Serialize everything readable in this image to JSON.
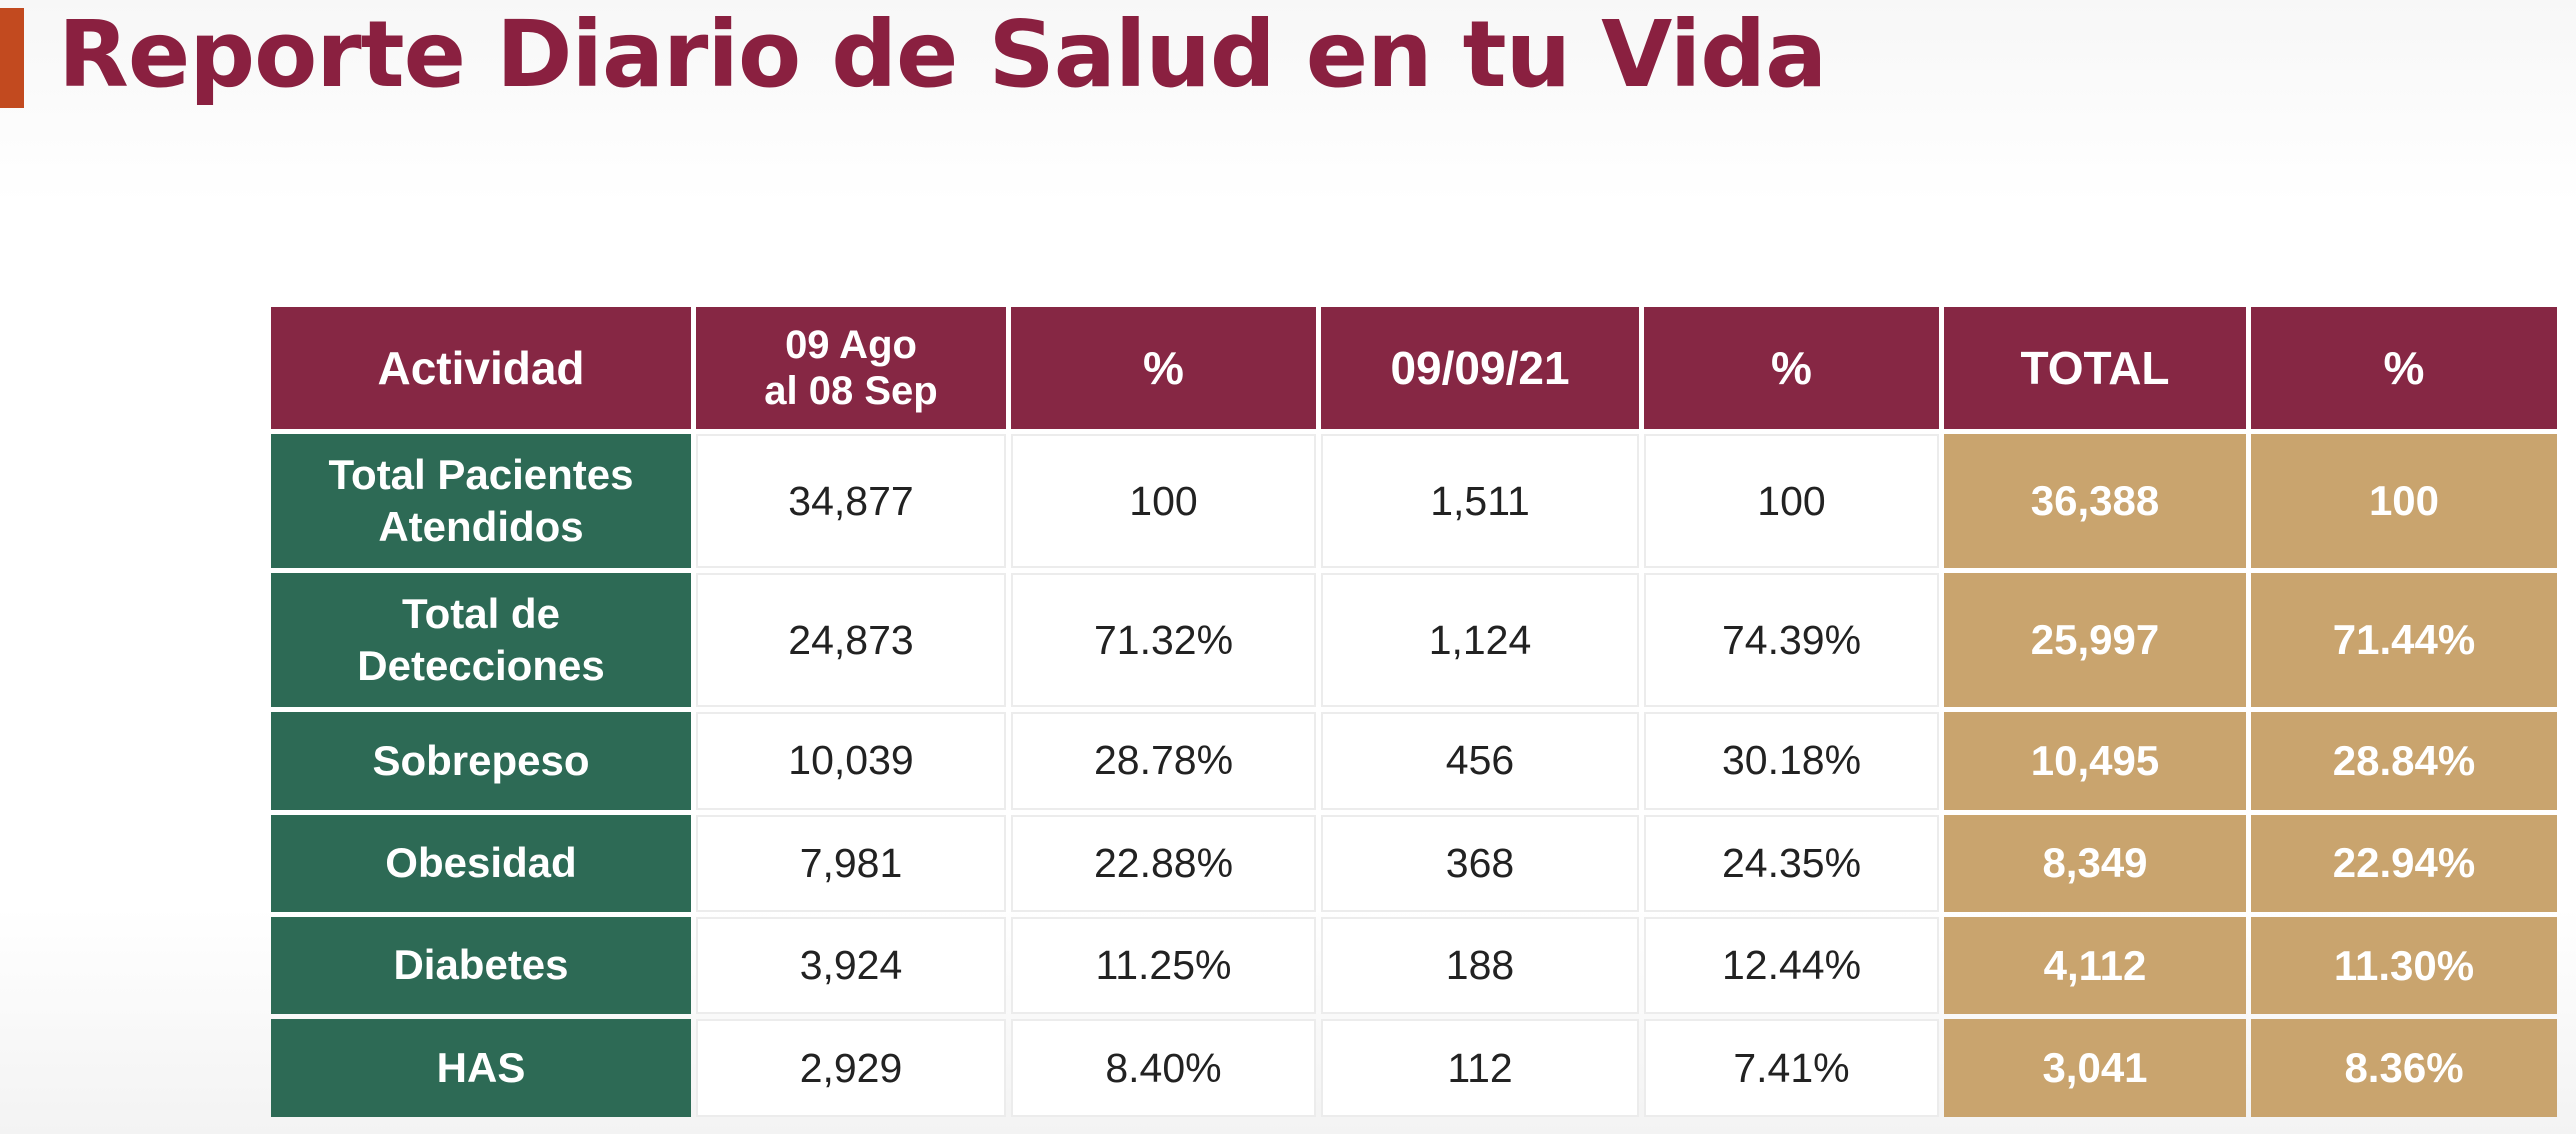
{
  "page": {
    "title": "Reporte Diario de Salud en tu Vida"
  },
  "table": {
    "headers": {
      "actividad": "Actividad",
      "periodo_line1": "09 Ago",
      "periodo_line2": "al 08 Sep",
      "pct1": "%",
      "fecha": "09/09/21",
      "pct2": "%",
      "total": "TOTAL",
      "pct3": "%"
    },
    "rows": [
      {
        "label_line1": "Total Pacientes",
        "label_line2": "Atendidos",
        "periodo": "34,877",
        "periodo_pct": "100",
        "dia": "1,511",
        "dia_pct": "100",
        "total": "36,388",
        "total_pct": "100"
      },
      {
        "label_line1": "Total de",
        "label_line2": "Detecciones",
        "periodo": "24,873",
        "periodo_pct": "71.32%",
        "dia": "1,124",
        "dia_pct": "74.39%",
        "total": "25,997",
        "total_pct": "71.44%"
      },
      {
        "label_line1": "Sobrepeso",
        "periodo": "10,039",
        "periodo_pct": "28.78%",
        "dia": "456",
        "dia_pct": "30.18%",
        "total": "10,495",
        "total_pct": "28.84%"
      },
      {
        "label_line1": "Obesidad",
        "periodo": "7,981",
        "periodo_pct": "22.88%",
        "dia": "368",
        "dia_pct": "24.35%",
        "total": "8,349",
        "total_pct": "22.94%"
      },
      {
        "label_line1": "Diabetes",
        "periodo": "3,924",
        "periodo_pct": "11.25%",
        "dia": "188",
        "dia_pct": "12.44%",
        "total": "4,112",
        "total_pct": "11.30%"
      },
      {
        "label_line1": "HAS",
        "periodo": "2,929",
        "periodo_pct": "8.40%",
        "dia": "112",
        "dia_pct": "7.41%",
        "total": "3,041",
        "total_pct": "8.36%"
      }
    ]
  },
  "colors": {
    "title": "#8a2040",
    "accent_bar": "#c24a1f",
    "header_bg": "#862744",
    "label_bg": "#2d6a55",
    "total_bg": "#c9a46e"
  }
}
